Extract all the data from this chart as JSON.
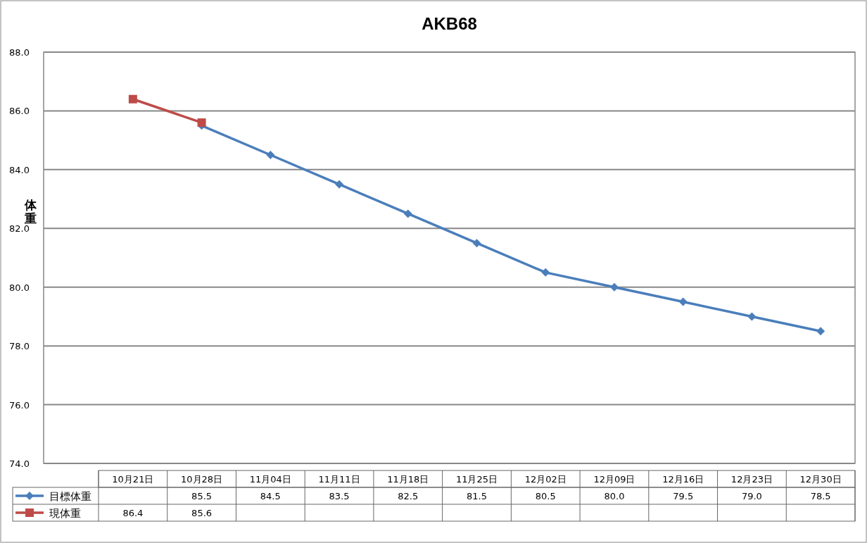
{
  "chart_data": {
    "type": "line",
    "title": "AKB68",
    "ylabel": "体重",
    "categories": [
      "10月21日",
      "10月28日",
      "11月04日",
      "11月11日",
      "11月18日",
      "11月25日",
      "12月02日",
      "12月09日",
      "12月16日",
      "12月23日",
      "12月30日"
    ],
    "series": [
      {
        "name": "目標体重",
        "color": "#4a7ebb",
        "marker": "diamond",
        "values": [
          null,
          85.5,
          84.5,
          83.5,
          82.5,
          81.5,
          80.5,
          80.0,
          79.5,
          79.0,
          78.5
        ],
        "value_labels": [
          null,
          "85.5",
          "84.5",
          "83.5",
          "82.5",
          "81.5",
          "80.5",
          "80.0",
          "79.5",
          "79.0",
          "78.5"
        ]
      },
      {
        "name": "現体重",
        "color": "#be4b48",
        "marker": "square",
        "values": [
          86.4,
          85.6,
          null,
          null,
          null,
          null,
          null,
          null,
          null,
          null,
          null
        ],
        "value_labels": [
          "86.4",
          "85.6",
          null,
          null,
          null,
          null,
          null,
          null,
          null,
          null,
          null
        ]
      }
    ],
    "ylim": [
      74,
      88
    ],
    "yticks": [
      {
        "value": 74,
        "label": "74.0"
      },
      {
        "value": 76,
        "label": "76.0"
      },
      {
        "value": 78,
        "label": "78.0"
      },
      {
        "value": 80,
        "label": "80.0"
      },
      {
        "value": 82,
        "label": "82.0"
      },
      {
        "value": 84,
        "label": "84.0"
      },
      {
        "value": 86,
        "label": "86.0"
      },
      {
        "value": 88,
        "label": "88.0"
      }
    ],
    "grid": "y",
    "legend": "bottom",
    "line_style": "solid"
  }
}
